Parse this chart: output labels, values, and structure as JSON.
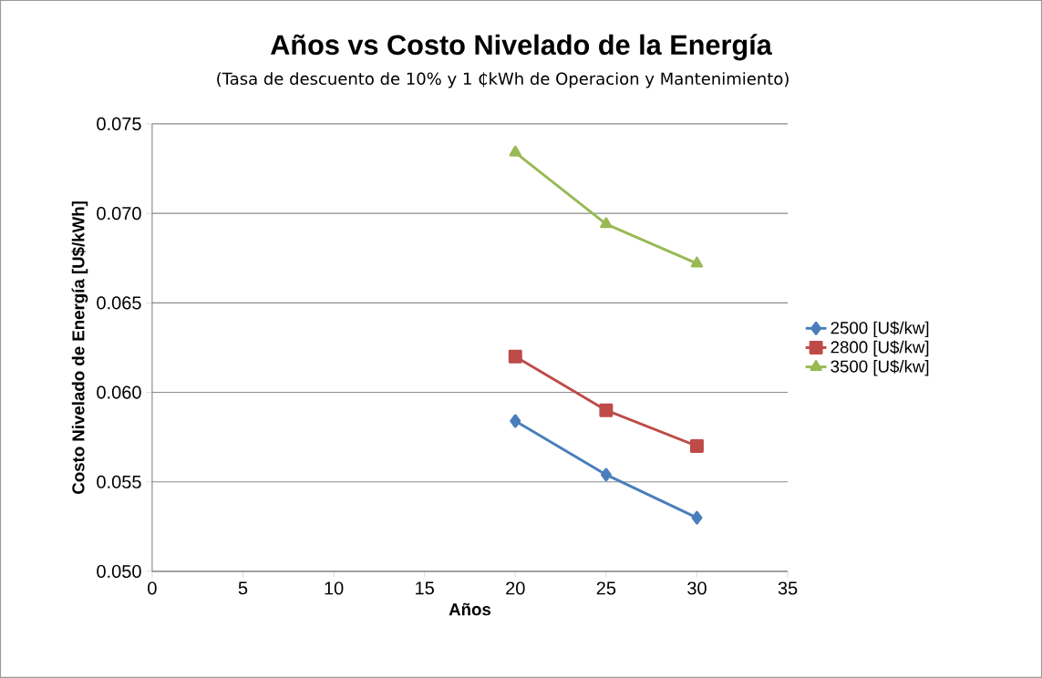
{
  "chart_data": {
    "type": "line",
    "title": "Años vs Costo Nivelado de la Energía",
    "subtitle": "(Tasa de descuento de 10% y 1 ₵kWh de Operacion y Mantenimiento)",
    "xlabel": "Años",
    "ylabel": "Costo Nivelado de Energía [U$/kWh]",
    "x": [
      20,
      25,
      30
    ],
    "series": [
      {
        "name": "2500 [U$/kw]",
        "color": "#4a7ebb",
        "marker": "diamond",
        "values": [
          0.0584,
          0.0554,
          0.053
        ]
      },
      {
        "name": "2800 [U$/kw]",
        "color": "#be4b48",
        "marker": "square",
        "values": [
          0.062,
          0.059,
          0.057
        ]
      },
      {
        "name": "3500 [U$/kw]",
        "color": "#98b954",
        "marker": "triangle",
        "values": [
          0.0734,
          0.0694,
          0.0672
        ]
      }
    ],
    "xlim": [
      0,
      35
    ],
    "xticks": [
      0,
      5,
      10,
      15,
      20,
      25,
      30,
      35
    ],
    "ylim": [
      0.05,
      0.075
    ],
    "yticks": [
      {
        "value": 0.05,
        "label": "0.050"
      },
      {
        "value": 0.055,
        "label": "0.055"
      },
      {
        "value": 0.06,
        "label": "0.060"
      },
      {
        "value": 0.065,
        "label": "0.065"
      },
      {
        "value": 0.07,
        "label": "0.070"
      },
      {
        "value": 0.075,
        "label": "0.075"
      }
    ],
    "grid": "y",
    "legend": "right",
    "line_style": "solid"
  }
}
